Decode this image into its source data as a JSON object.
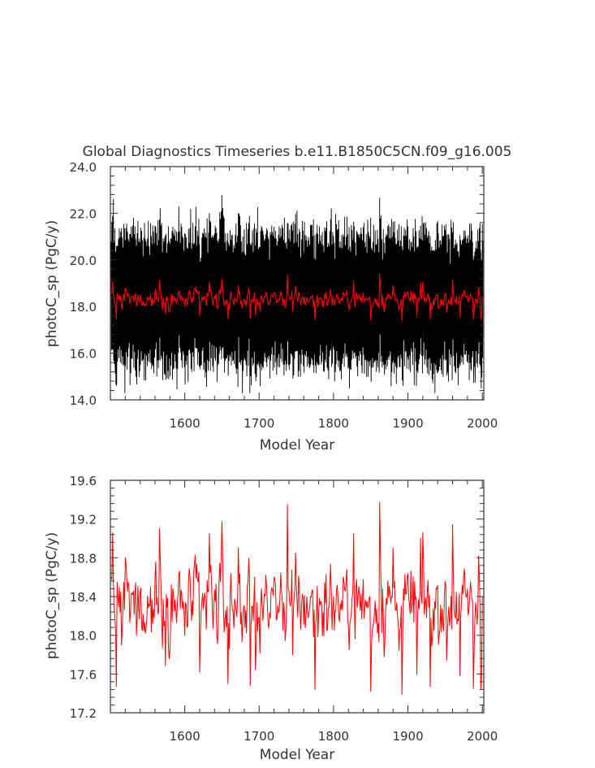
{
  "page": {
    "title": "Global Diagnostics Timeseries b.e11.B1850C5CN.f09_g16.005"
  },
  "colors": {
    "monthly": "#000000",
    "annual": "#ff0000",
    "axis": "#333333"
  },
  "chart_data": [
    {
      "type": "line",
      "title": "Global Diagnostics Timeseries b.e11.B1850C5CN.f09_g16.005",
      "xlabel": "Model Year",
      "ylabel": "photoC_sp (PgC/y)",
      "xlim": [
        1500,
        2002
      ],
      "ylim": [
        14.0,
        24.0
      ],
      "x_ticks": [
        "1600",
        "1700",
        "1800",
        "1900",
        "2000"
      ],
      "y_ticks": [
        "14.0",
        "16.0",
        "18.0",
        "20.0",
        "22.0",
        "24.0"
      ],
      "grid": false,
      "series": [
        {
          "color": "#000000",
          "resolution": "monthly",
          "x_range": [
            1500,
            2001
          ],
          "mean": 18.3,
          "seasonal_low": 15.6,
          "seasonal_high": 20.8,
          "min": 14.3,
          "max": 22.8
        },
        {
          "color": "#ff0000",
          "resolution": "annual",
          "values_ref": "annual_mean"
        }
      ]
    },
    {
      "type": "line",
      "title": "",
      "xlabel": "Model Year",
      "ylabel": "photoC_sp (PgC/y)",
      "xlim": [
        1500,
        2002
      ],
      "ylim": [
        17.2,
        19.6
      ],
      "x_ticks": [
        "1600",
        "1700",
        "1800",
        "1900",
        "2000"
      ],
      "y_ticks": [
        "17.2",
        "17.6",
        "18.0",
        "18.4",
        "18.8",
        "19.2",
        "19.6"
      ],
      "grid": false,
      "series": [
        {
          "color": "#ff0000",
          "resolution": "annual",
          "values_ref": "annual_mean"
        }
      ]
    }
  ],
  "annual_mean": {
    "x_start": 1501,
    "x_end": 2000,
    "mean": 18.32,
    "key_points": [
      [
        1501,
        18.6
      ],
      [
        1503,
        19.06
      ],
      [
        1505,
        18.3
      ],
      [
        1508,
        17.47
      ],
      [
        1512,
        18.5
      ],
      [
        1515,
        17.9
      ],
      [
        1520,
        18.8
      ],
      [
        1535,
        18.0
      ],
      [
        1560,
        18.6
      ],
      [
        1566,
        19.1
      ],
      [
        1600,
        18.0
      ],
      [
        1620,
        17.62
      ],
      [
        1633,
        19.05
      ],
      [
        1650,
        19.17
      ],
      [
        1658,
        17.5
      ],
      [
        1672,
        18.9
      ],
      [
        1688,
        17.48
      ],
      [
        1695,
        17.64
      ],
      [
        1720,
        18.6
      ],
      [
        1738,
        19.35
      ],
      [
        1745,
        17.8
      ],
      [
        1775,
        17.44
      ],
      [
        1800,
        18.4
      ],
      [
        1827,
        19.05
      ],
      [
        1850,
        17.42
      ],
      [
        1862,
        19.37
      ],
      [
        1880,
        18.9
      ],
      [
        1892,
        17.39
      ],
      [
        1912,
        17.6
      ],
      [
        1920,
        19.06
      ],
      [
        1930,
        17.47
      ],
      [
        1952,
        17.74
      ],
      [
        1960,
        19.14
      ],
      [
        1970,
        17.58
      ],
      [
        1988,
        17.45
      ],
      [
        1995,
        18.82
      ],
      [
        1998,
        17.44
      ],
      [
        2000,
        18.4
      ]
    ]
  }
}
